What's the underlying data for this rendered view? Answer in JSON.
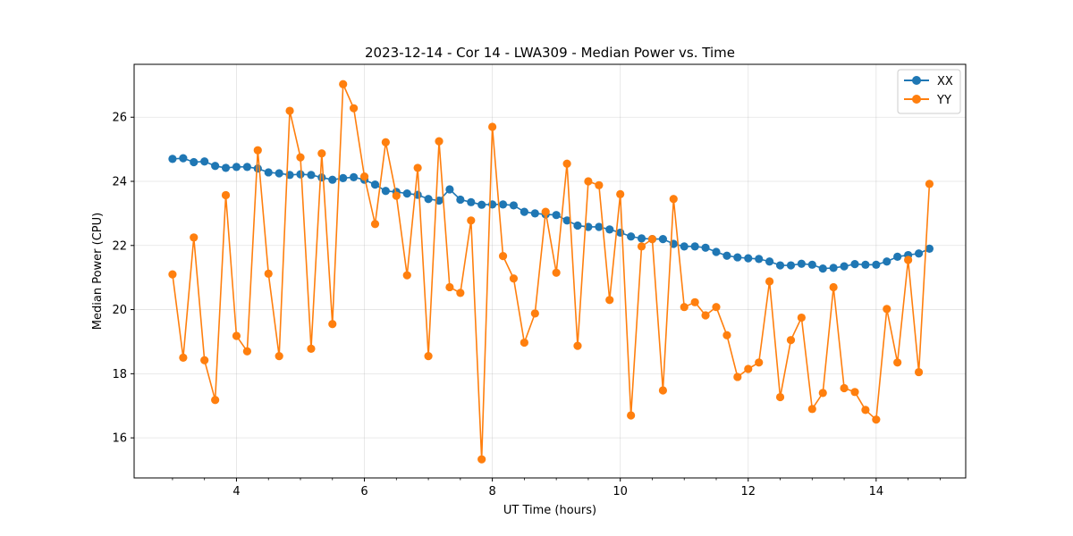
{
  "chart_data": {
    "type": "line",
    "title": "2023-12-14 - Cor 14 - LWA309 - Median Power vs. Time",
    "xlabel": "UT Time (hours)",
    "ylabel": "Median Power (CPU)",
    "xlim": [
      2.4,
      15.4
    ],
    "ylim": [
      14.75,
      27.65
    ],
    "xticks": [
      4,
      6,
      8,
      10,
      12,
      14
    ],
    "xtick_labels": [
      "4",
      "6",
      "8",
      "10",
      "12",
      "14"
    ],
    "yticks": [
      16,
      18,
      20,
      22,
      24,
      26
    ],
    "ytick_labels": [
      "16",
      "18",
      "20",
      "22",
      "24",
      "26"
    ],
    "grid": true,
    "legend_position": "top-right",
    "x": [
      3.0,
      3.167,
      3.333,
      3.5,
      3.667,
      3.833,
      4.0,
      4.167,
      4.333,
      4.5,
      4.667,
      4.833,
      5.0,
      5.167,
      5.333,
      5.5,
      5.667,
      5.833,
      6.0,
      6.167,
      6.333,
      6.5,
      6.667,
      6.833,
      7.0,
      7.167,
      7.333,
      7.5,
      7.667,
      7.833,
      8.0,
      8.167,
      8.333,
      8.5,
      8.667,
      8.833,
      9.0,
      9.167,
      9.333,
      9.5,
      9.667,
      9.833,
      10.0,
      10.167,
      10.333,
      10.5,
      10.667,
      10.833,
      11.0,
      11.167,
      11.333,
      11.5,
      11.667,
      11.833,
      12.0,
      12.167,
      12.333,
      12.5,
      12.667,
      12.833,
      13.0,
      13.167,
      13.333,
      13.5,
      13.667,
      13.833,
      14.0,
      14.167,
      14.333,
      14.5,
      14.667,
      14.833
    ],
    "series": [
      {
        "name": "XX",
        "color": "#1f77b4",
        "values": [
          24.7,
          24.72,
          24.6,
          24.62,
          24.48,
          24.42,
          24.45,
          24.45,
          24.4,
          24.28,
          24.25,
          24.2,
          24.22,
          24.2,
          24.12,
          24.05,
          24.1,
          24.13,
          24.05,
          23.9,
          23.7,
          23.67,
          23.62,
          23.58,
          23.45,
          23.4,
          23.75,
          23.43,
          23.35,
          23.27,
          23.28,
          23.28,
          23.25,
          23.05,
          23.0,
          22.97,
          22.95,
          22.78,
          22.62,
          22.58,
          22.58,
          22.5,
          22.4,
          22.28,
          22.22,
          22.2,
          22.2,
          22.05,
          21.97,
          21.97,
          21.93,
          21.8,
          21.68,
          21.63,
          21.6,
          21.58,
          21.5,
          21.38,
          21.38,
          21.43,
          21.4,
          21.28,
          21.3,
          21.35,
          21.42,
          21.4,
          21.4,
          21.5,
          21.65,
          21.7,
          21.75,
          21.9
        ]
      },
      {
        "name": "YY",
        "color": "#ff7f0e",
        "values": [
          21.1,
          18.5,
          22.25,
          18.42,
          17.18,
          23.57,
          19.18,
          18.7,
          24.97,
          21.12,
          18.55,
          26.2,
          24.75,
          18.78,
          24.87,
          19.55,
          27.03,
          26.28,
          24.15,
          22.67,
          25.22,
          23.55,
          21.07,
          24.42,
          18.55,
          25.25,
          20.7,
          20.52,
          22.78,
          15.33,
          25.7,
          21.67,
          20.97,
          18.97,
          19.88,
          23.05,
          21.15,
          24.55,
          18.87,
          24.0,
          23.88,
          20.3,
          23.6,
          16.7,
          21.97,
          22.2,
          17.48,
          23.45,
          20.08,
          20.23,
          19.82,
          20.08,
          19.2,
          17.9,
          18.15,
          18.35,
          20.88,
          17.27,
          19.05,
          19.75,
          16.9,
          17.4,
          20.7,
          17.55,
          17.43,
          16.87,
          16.57,
          20.02,
          18.35,
          21.55,
          18.05,
          23.92
        ]
      }
    ]
  }
}
